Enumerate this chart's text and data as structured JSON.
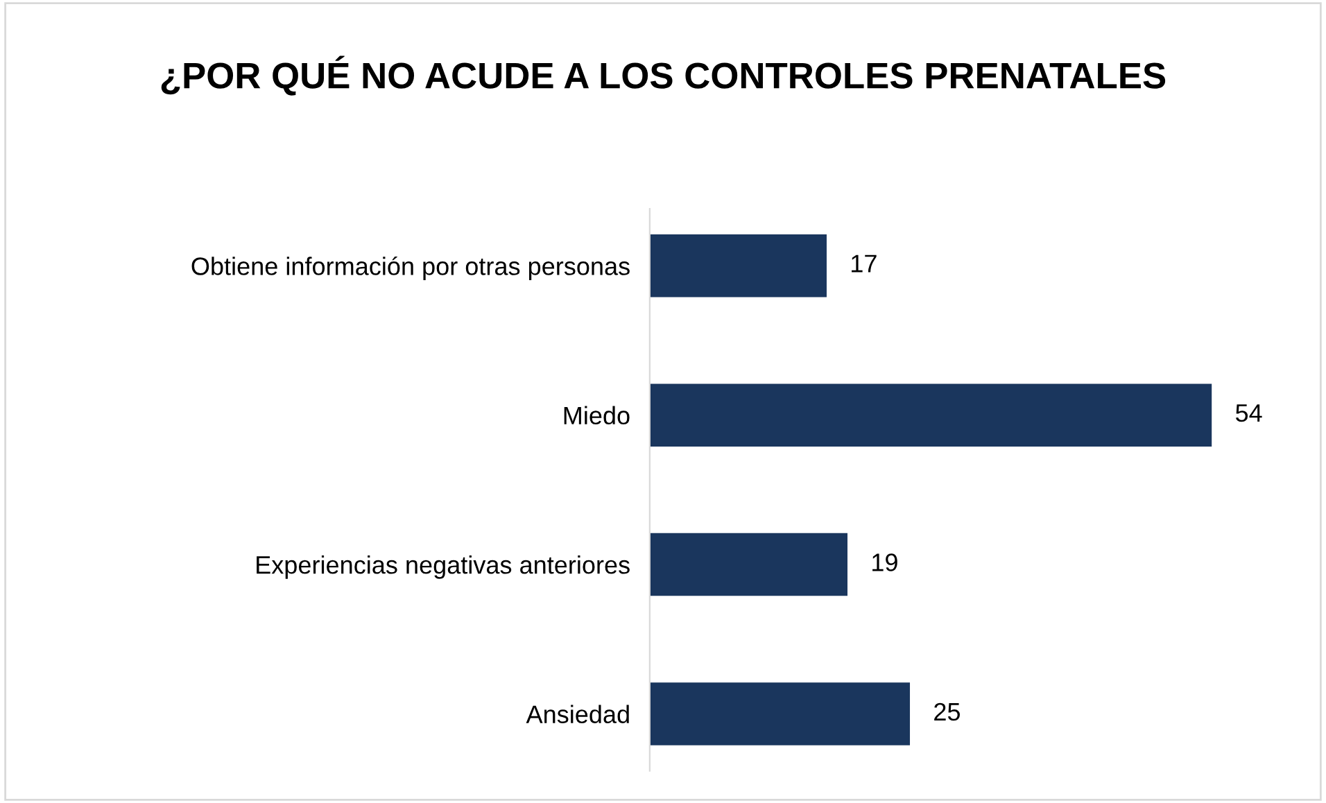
{
  "chart_data": {
    "type": "bar",
    "orientation": "horizontal",
    "title": "¿POR QUÉ NO ACUDE A LOS CONTROLES PRENATALES",
    "categories": [
      "Obtiene información por otras personas",
      "Miedo",
      "Experiencias negativas anteriores",
      "Ansiedad"
    ],
    "values": [
      17,
      54,
      19,
      25
    ],
    "color": "#1a365d",
    "data_labels": true,
    "grid": false,
    "legend": false
  }
}
